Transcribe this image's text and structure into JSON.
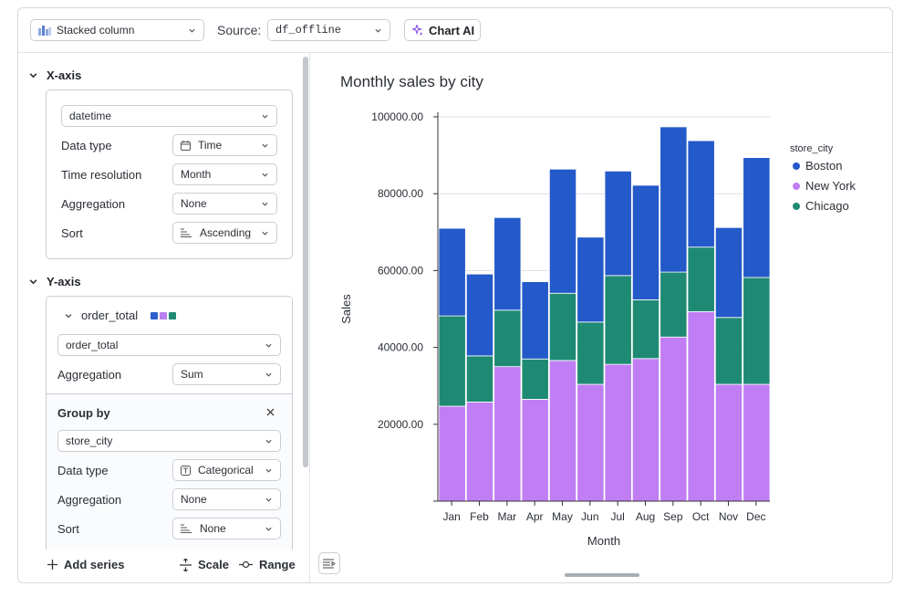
{
  "toolbar": {
    "chart_type": "Stacked column",
    "source_label": "Source:",
    "source_value": "df_offline",
    "chart_ai_label": "Chart AI"
  },
  "x_axis_section": {
    "title": "X-axis",
    "column": "datetime",
    "rows": [
      {
        "label": "Data type",
        "value": "Time",
        "icon": "calendar-icon"
      },
      {
        "label": "Time resolution",
        "value": "Month",
        "icon": ""
      },
      {
        "label": "Aggregation",
        "value": "None",
        "icon": ""
      },
      {
        "label": "Sort",
        "value": "Ascending",
        "icon": "sort-icon"
      }
    ]
  },
  "y_axis_section": {
    "title": "Y-axis",
    "series_name": "order_total",
    "series_colors": [
      "#2d5fd0",
      "#b97ff2",
      "#1f8a74"
    ],
    "column": "order_total",
    "aggregation_label": "Aggregation",
    "aggregation_value": "Sum",
    "group_by": {
      "title": "Group by",
      "column": "store_city",
      "rows": [
        {
          "label": "Data type",
          "value": "Categorical",
          "icon": "text-type-icon"
        },
        {
          "label": "Aggregation",
          "value": "None",
          "icon": ""
        },
        {
          "label": "Sort",
          "value": "None",
          "icon": "sort-icon"
        }
      ]
    }
  },
  "footer": {
    "add_series": "Add series",
    "scale": "Scale",
    "range": "Range"
  },
  "colors": {
    "boston": "#2359c9",
    "new_york": "#c07df4",
    "chicago": "#1f8a74",
    "border": "#c9cdd3"
  },
  "chart_data": {
    "type": "bar",
    "stacked": true,
    "title": "Monthly sales by city",
    "xlabel": "Month",
    "ylabel": "Sales",
    "ylim": [
      0,
      100000
    ],
    "yticks": [
      "100000.00",
      "80000.00",
      "60000.00",
      "40000.00",
      "20000.00"
    ],
    "ytick_values": [
      100000,
      80000,
      60000,
      40000,
      20000
    ],
    "legend_title": "store_city",
    "legend_position": "right",
    "categories": [
      "Jan",
      "Feb",
      "Mar",
      "Apr",
      "May",
      "Jun",
      "Jul",
      "Aug",
      "Sep",
      "Oct",
      "Nov",
      "Dec"
    ],
    "series": [
      {
        "name": "New York",
        "color": "#c07df4",
        "values": [
          24700,
          25800,
          35000,
          26500,
          36600,
          30400,
          35600,
          37100,
          42700,
          49300,
          30400,
          30400
        ]
      },
      {
        "name": "Chicago",
        "color": "#1f8a74",
        "values": [
          23500,
          12000,
          14700,
          10500,
          17500,
          16200,
          23100,
          15300,
          16900,
          16800,
          17400,
          27800
        ]
      },
      {
        "name": "Boston",
        "color": "#2359c9",
        "values": [
          22800,
          21300,
          24100,
          20100,
          32300,
          22100,
          27200,
          29800,
          37800,
          27700,
          23400,
          31200
        ]
      }
    ],
    "legend_order": [
      "Boston",
      "New York",
      "Chicago"
    ]
  }
}
